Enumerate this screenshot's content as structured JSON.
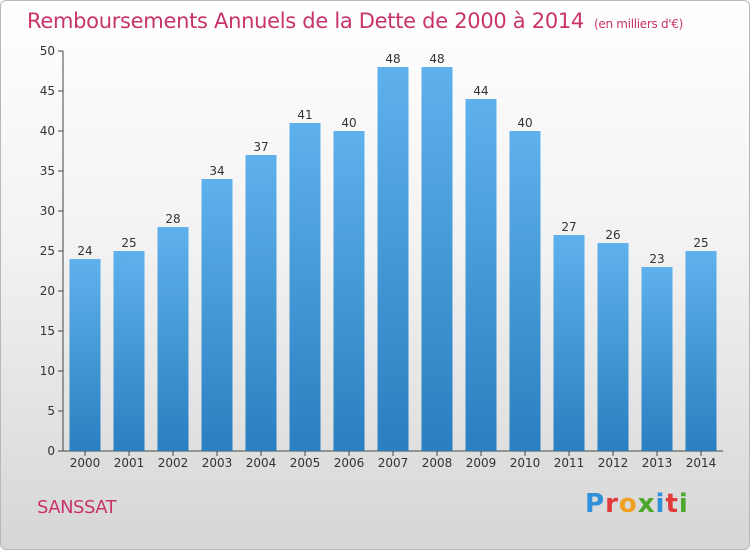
{
  "title": "Remboursements Annuels de la Dette de 2000 à 2014",
  "subtitle": "(en milliers d'€)",
  "commune": "SANSSAT",
  "logo": {
    "letters": [
      "P",
      "r",
      "o",
      "x",
      "i",
      "t",
      "i"
    ],
    "colors": [
      "#2f8fd8",
      "#e03a3a",
      "#f0a020",
      "#4aa82a",
      "#2f8fd8",
      "#e03a3a",
      "#4aa82a"
    ]
  },
  "colors": {
    "title": "#c8336b",
    "bar_top": "#5fb1ec",
    "bar_bottom": "#2a7fc0"
  },
  "chart_data": {
    "type": "bar",
    "categories": [
      "2000",
      "2001",
      "2002",
      "2003",
      "2004",
      "2005",
      "2006",
      "2007",
      "2008",
      "2009",
      "2010",
      "2011",
      "2012",
      "2013",
      "2014"
    ],
    "values": [
      24,
      25,
      28,
      34,
      37,
      41,
      40,
      48,
      48,
      44,
      40,
      27,
      26,
      23,
      25
    ],
    "ylim": [
      0,
      50
    ],
    "yticks": [
      0,
      5,
      10,
      15,
      20,
      25,
      30,
      35,
      40,
      45,
      50
    ],
    "grid": false,
    "data_labels": true
  }
}
